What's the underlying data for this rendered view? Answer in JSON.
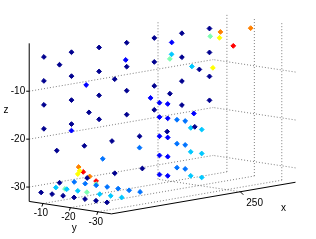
{
  "chart_data": {
    "type": "scatter",
    "x_label": "x",
    "y_label": "y",
    "z_label": "z",
    "xlim": [
      180,
      280
    ],
    "ylim": [
      -35,
      -5
    ],
    "zlim": [
      -33,
      0
    ],
    "xticks": [
      250
    ],
    "yticks": [
      -10,
      -20,
      -30
    ],
    "zticks": [
      -30,
      -20,
      -10
    ],
    "grid": true,
    "marker": "diamond",
    "series": [
      {
        "color": "#00008f",
        "values": [
          [
            185,
            -7,
            -3
          ],
          [
            200,
            -7,
            -3
          ],
          [
            215,
            -7,
            -3
          ],
          [
            230,
            -7,
            -3
          ],
          [
            245,
            -7,
            -3
          ],
          [
            260,
            -7,
            -3
          ],
          [
            275,
            -7,
            -3
          ],
          [
            185,
            -7,
            -8
          ],
          [
            200,
            -7,
            -8
          ],
          [
            215,
            -7,
            -8
          ],
          [
            230,
            -7,
            -8
          ],
          [
            245,
            -7,
            -8
          ],
          [
            260,
            -7,
            -8
          ],
          [
            275,
            -7,
            -8
          ],
          [
            185,
            -7,
            -13
          ],
          [
            200,
            -7,
            -13
          ],
          [
            215,
            -7,
            -13
          ],
          [
            230,
            -7,
            -13
          ],
          [
            245,
            -7,
            -13
          ],
          [
            260,
            -7,
            -13
          ],
          [
            275,
            -7,
            -13
          ],
          [
            185,
            -7,
            -18
          ],
          [
            200,
            -7,
            -18
          ],
          [
            215,
            -7,
            -18
          ],
          [
            230,
            -7,
            -18
          ],
          [
            245,
            -7,
            -18
          ],
          [
            260,
            -7,
            -18
          ],
          [
            275,
            -7,
            -18
          ],
          [
            192,
            -7,
            -23
          ],
          [
            207,
            -7,
            -23
          ],
          [
            222,
            -7,
            -23
          ],
          [
            237,
            -7,
            -23
          ],
          [
            252,
            -7,
            -23
          ],
          [
            267,
            -7,
            -23
          ],
          [
            182,
            -8,
            -31
          ],
          [
            182,
            -12,
            -31
          ],
          [
            182,
            -16,
            -31
          ],
          [
            182,
            -20,
            -31
          ],
          [
            182,
            -24,
            -31
          ],
          [
            182,
            -28,
            -31
          ],
          [
            182,
            -32,
            -31
          ],
          [
            195,
            -6,
            -30
          ],
          [
            210,
            -6,
            -30
          ],
          [
            225,
            -6,
            -30
          ],
          [
            240,
            -6,
            -30
          ],
          [
            192,
            -8,
            -5
          ],
          [
            222,
            -8,
            -10
          ],
          [
            252,
            -8,
            -15
          ],
          [
            268,
            -8,
            -11
          ],
          [
            208,
            -8,
            -16
          ]
        ]
      },
      {
        "color": "#0000ff",
        "values": [
          [
            218,
            -27,
            -28
          ],
          [
            218,
            -27,
            -24
          ],
          [
            218,
            -27,
            -20
          ],
          [
            218,
            -27,
            -16
          ],
          [
            218,
            -27,
            -13
          ],
          [
            218,
            -30,
            -28
          ],
          [
            218,
            -30,
            -24
          ],
          [
            218,
            -30,
            -20
          ],
          [
            218,
            -30,
            -16
          ],
          [
            218,
            -30,
            -13
          ],
          [
            205,
            -9,
            -10
          ],
          [
            240,
            -9,
            -15
          ],
          [
            265,
            -8,
            -20
          ],
          [
            225,
            -10,
            -6
          ],
          [
            250,
            -10,
            -4
          ],
          [
            197,
            -9,
            -19
          ]
        ]
      },
      {
        "color": "#0073ff",
        "values": [
          [
            200,
            -8,
            -30
          ],
          [
            200,
            -12,
            -30
          ],
          [
            200,
            -16,
            -30
          ],
          [
            200,
            -20,
            -30
          ],
          [
            200,
            -24,
            -30
          ],
          [
            200,
            -28,
            -30
          ],
          [
            200,
            -32,
            -30
          ],
          [
            226,
            -28,
            -27
          ],
          [
            226,
            -28,
            -22
          ],
          [
            226,
            -28,
            -17
          ],
          [
            226,
            -31,
            -27
          ],
          [
            226,
            -31,
            -22
          ],
          [
            226,
            -31,
            -17
          ],
          [
            214,
            -9,
            -26
          ],
          [
            234,
            -9,
            -25
          ]
        ]
      },
      {
        "color": "#00c8ff",
        "values": [
          [
            190,
            -8,
            -30.5
          ],
          [
            190,
            -12,
            -30.5
          ],
          [
            190,
            -16,
            -30.5
          ],
          [
            190,
            -24,
            -30.5
          ],
          [
            190,
            -28,
            -30.5
          ],
          [
            190,
            -32,
            -30.5
          ],
          [
            232,
            -29,
            -29
          ],
          [
            232,
            -29,
            -24
          ],
          [
            232,
            -29,
            -19
          ],
          [
            232,
            -33,
            -29
          ],
          [
            232,
            -33,
            -24
          ],
          [
            232,
            -33,
            -19
          ],
          [
            255,
            -14,
            -9
          ],
          [
            238,
            -18,
            -5
          ]
        ]
      },
      {
        "color": "#7dffb0",
        "values": [
          [
            186,
            -14,
            -30
          ],
          [
            186,
            -22,
            -30
          ],
          [
            194,
            -20,
            -29
          ],
          [
            246,
            -12,
            -7
          ],
          [
            262,
            -16,
            -3
          ]
        ]
      },
      {
        "color": "#ffff00",
        "values": [
          [
            188,
            -18,
            -26
          ],
          [
            190,
            -16,
            -27
          ],
          [
            270,
            -14,
            -4
          ],
          [
            250,
            -25,
            -8
          ]
        ]
      },
      {
        "color": "#ff8000",
        "values": [
          [
            186,
            -19,
            -25
          ],
          [
            189,
            -21,
            -27
          ],
          [
            272,
            -13,
            -3
          ],
          [
            278,
            -20,
            -2
          ]
        ]
      },
      {
        "color": "#ff0000",
        "values": [
          [
            187,
            -20,
            -26
          ],
          [
            191,
            -22,
            -28
          ],
          [
            276,
            -15,
            -6
          ]
        ]
      }
    ]
  }
}
